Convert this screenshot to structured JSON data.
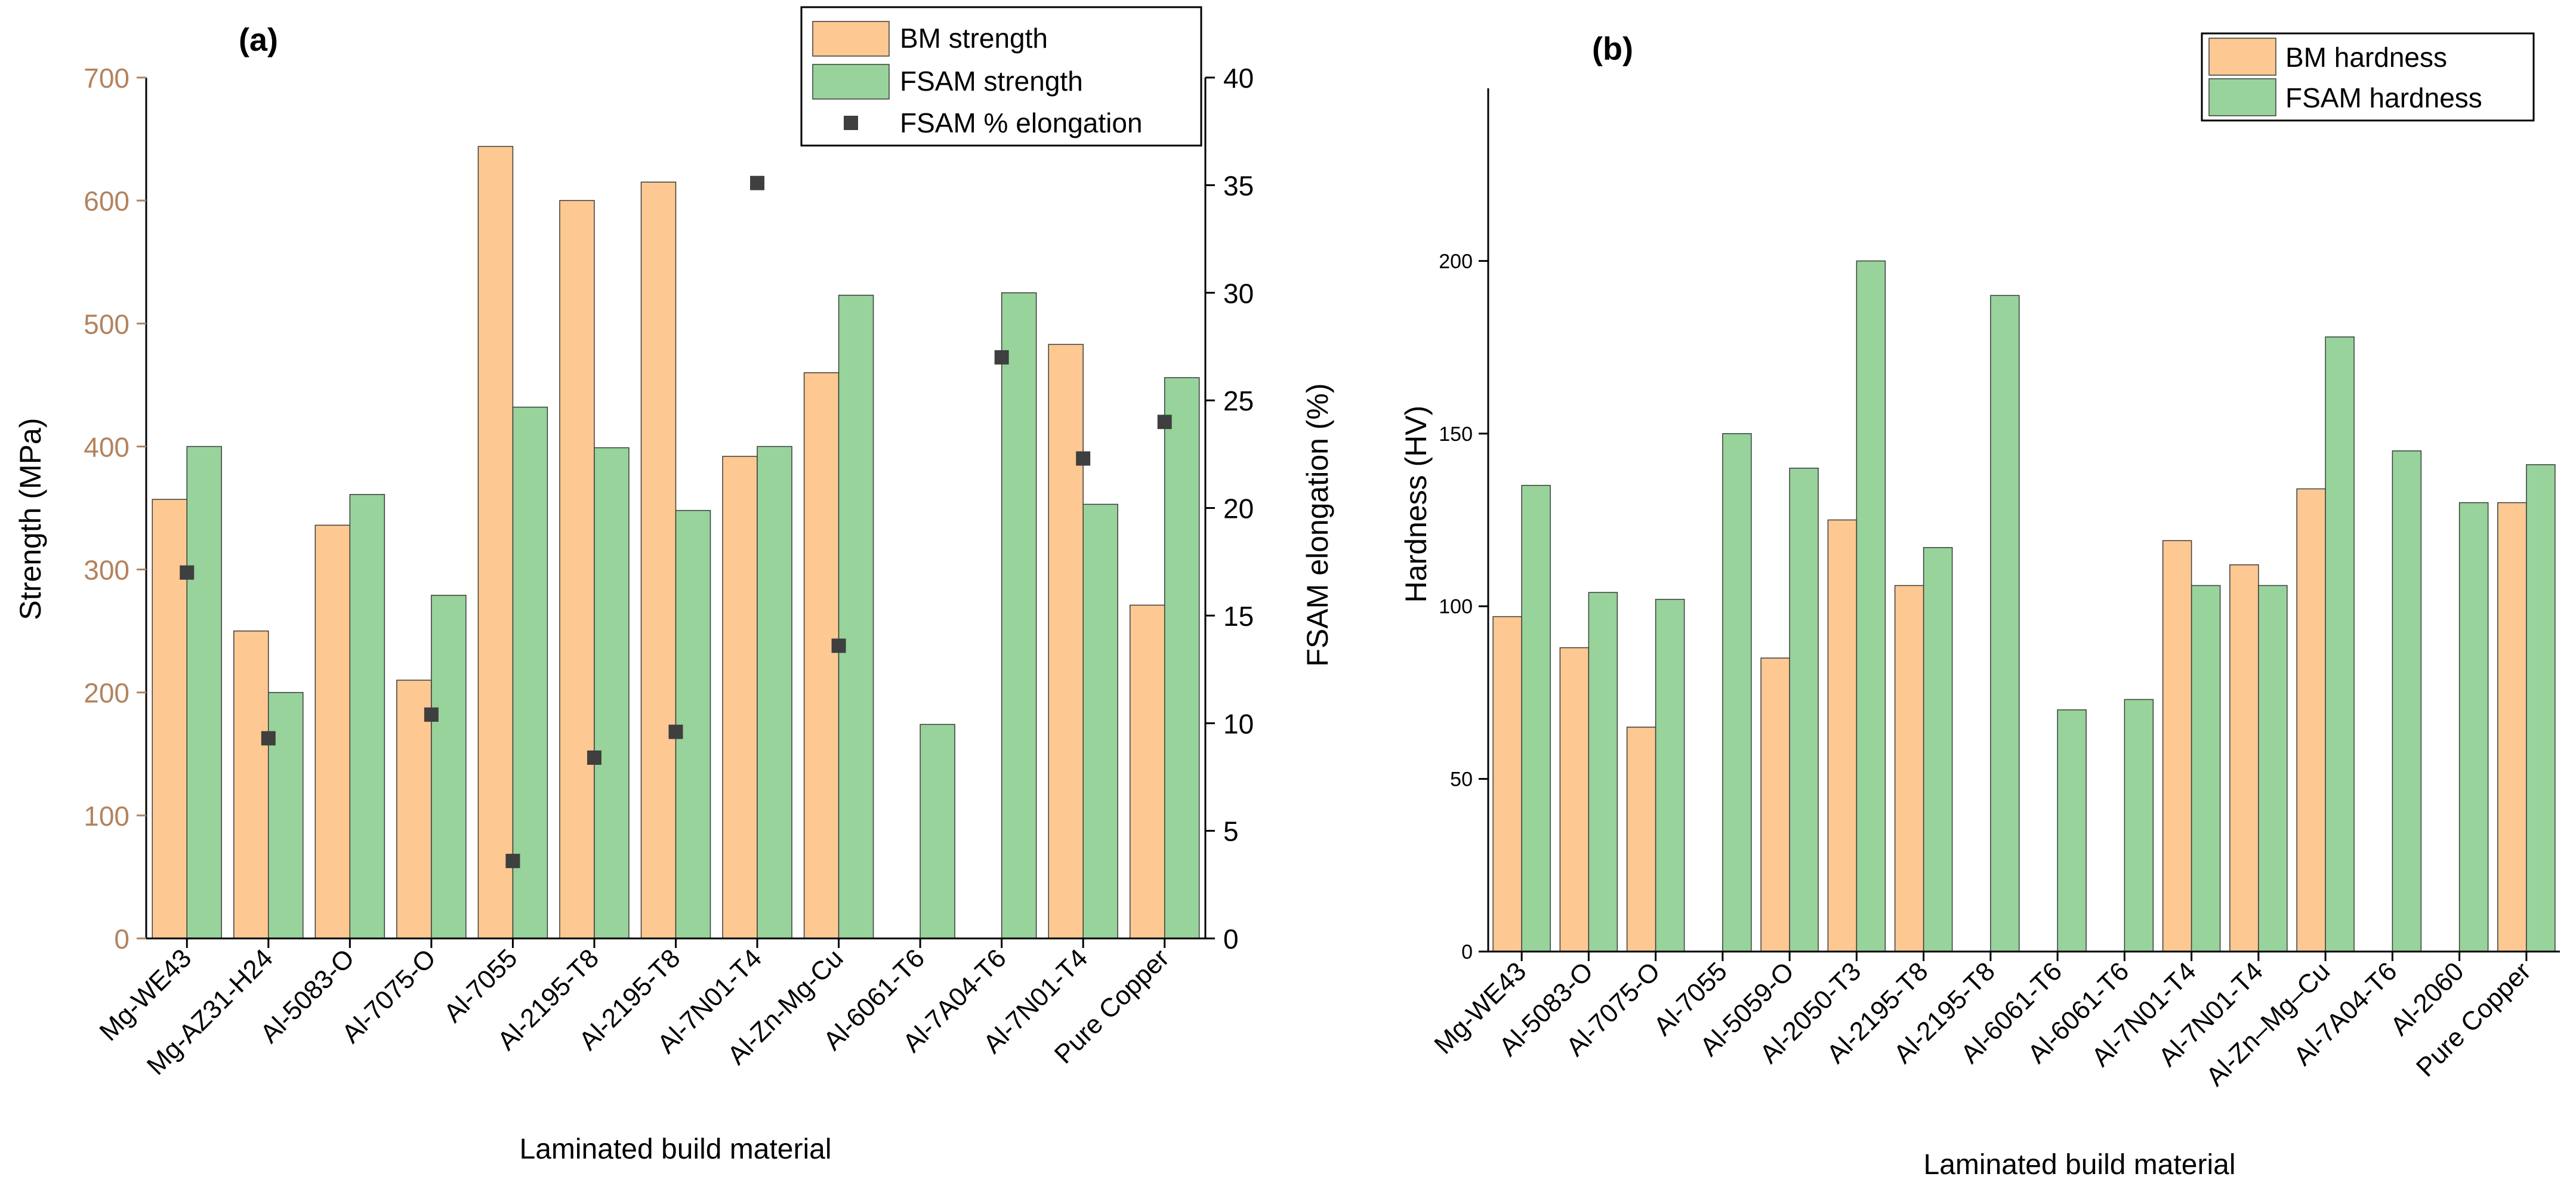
{
  "colors": {
    "bm": "#FDC891",
    "fsam": "#97D39B",
    "edge": "#3c3c3c",
    "elong": "#3f3f3f",
    "strength_axis": "#B3835E",
    "axis": "#000000"
  },
  "chart_data": [
    {
      "panel": "(a)",
      "type": "bar",
      "xlabel": "Laminated build material",
      "ylabel": "Strength (MPa)",
      "ylabel_right": "FSAM elongation (%)",
      "ylim": [
        0,
        700
      ],
      "yticks": [
        "0",
        "100",
        "200",
        "300",
        "400",
        "500",
        "600",
        "700"
      ],
      "ylim_right": [
        0,
        40
      ],
      "yticks_right": [
        "0",
        "5",
        "10",
        "15",
        "20",
        "25",
        "30",
        "35",
        "40"
      ],
      "categories": [
        "Mg-WE43",
        "Mg-AZ31-H24",
        "Al-5083-O",
        "Al-7075-O",
        "Al-7055",
        "Al-2195-T8",
        "Al-2195-T8",
        "Al-7N01-T4",
        "Al-Zn-Mg-Cu",
        "Al-6061-T6",
        "Al-7A04-T6",
        "Al-7N01-T4",
        "Pure Copper"
      ],
      "series": [
        {
          "name": "BM strength",
          "type": "bar",
          "values": [
            357,
            250,
            336,
            210,
            644,
            600,
            615,
            392,
            460,
            null,
            null,
            483,
            271
          ]
        },
        {
          "name": "FSAM strength",
          "type": "bar",
          "values": [
            400,
            200,
            361,
            279,
            432,
            399,
            348,
            400,
            523,
            174,
            525,
            353,
            456
          ]
        },
        {
          "name": "FSAM % elongation",
          "type": "scatter",
          "axis": "right",
          "values": [
            17.0,
            9.3,
            null,
            10.4,
            3.6,
            8.4,
            9.6,
            35.1,
            13.6,
            null,
            27.0,
            22.3,
            24.0
          ]
        }
      ],
      "legend": [
        "BM strength",
        "FSAM strength",
        "FSAM % elongation"
      ],
      "legend_position": "top-right"
    },
    {
      "panel": "(b)",
      "type": "bar",
      "xlabel": "Laminated build material",
      "ylabel": "Hardness (HV)",
      "ylim": [
        0,
        250
      ],
      "yticks": [
        "0",
        "50",
        "100",
        "150",
        "200"
      ],
      "categories": [
        "Mg-WE43",
        "Al-5083-O",
        "Al-7075-O",
        "Al-7055",
        "Al-5059-O",
        "Al-2050-T3",
        "Al-2195-T8",
        "Al-2195-T8",
        "Al-6061-T6",
        "Al-6061-T6",
        "Al-7N01-T4",
        "Al-7N01-T4",
        "Al-Zn–Mg–Cu",
        "Al-7A04-T6",
        "Al-2060",
        "Pure Copper"
      ],
      "series": [
        {
          "name": "BM hardness",
          "values": [
            97,
            88,
            65,
            null,
            85,
            125,
            106,
            null,
            null,
            null,
            119,
            112,
            134,
            null,
            null,
            130
          ]
        },
        {
          "name": "FSAM hardness",
          "values": [
            135,
            104,
            102,
            150,
            140,
            200,
            117,
            190,
            70,
            73,
            106,
            106,
            178,
            145,
            130,
            141
          ]
        }
      ],
      "legend": [
        "BM hardness",
        "FSAM hardness"
      ],
      "legend_position": "top-right"
    }
  ]
}
